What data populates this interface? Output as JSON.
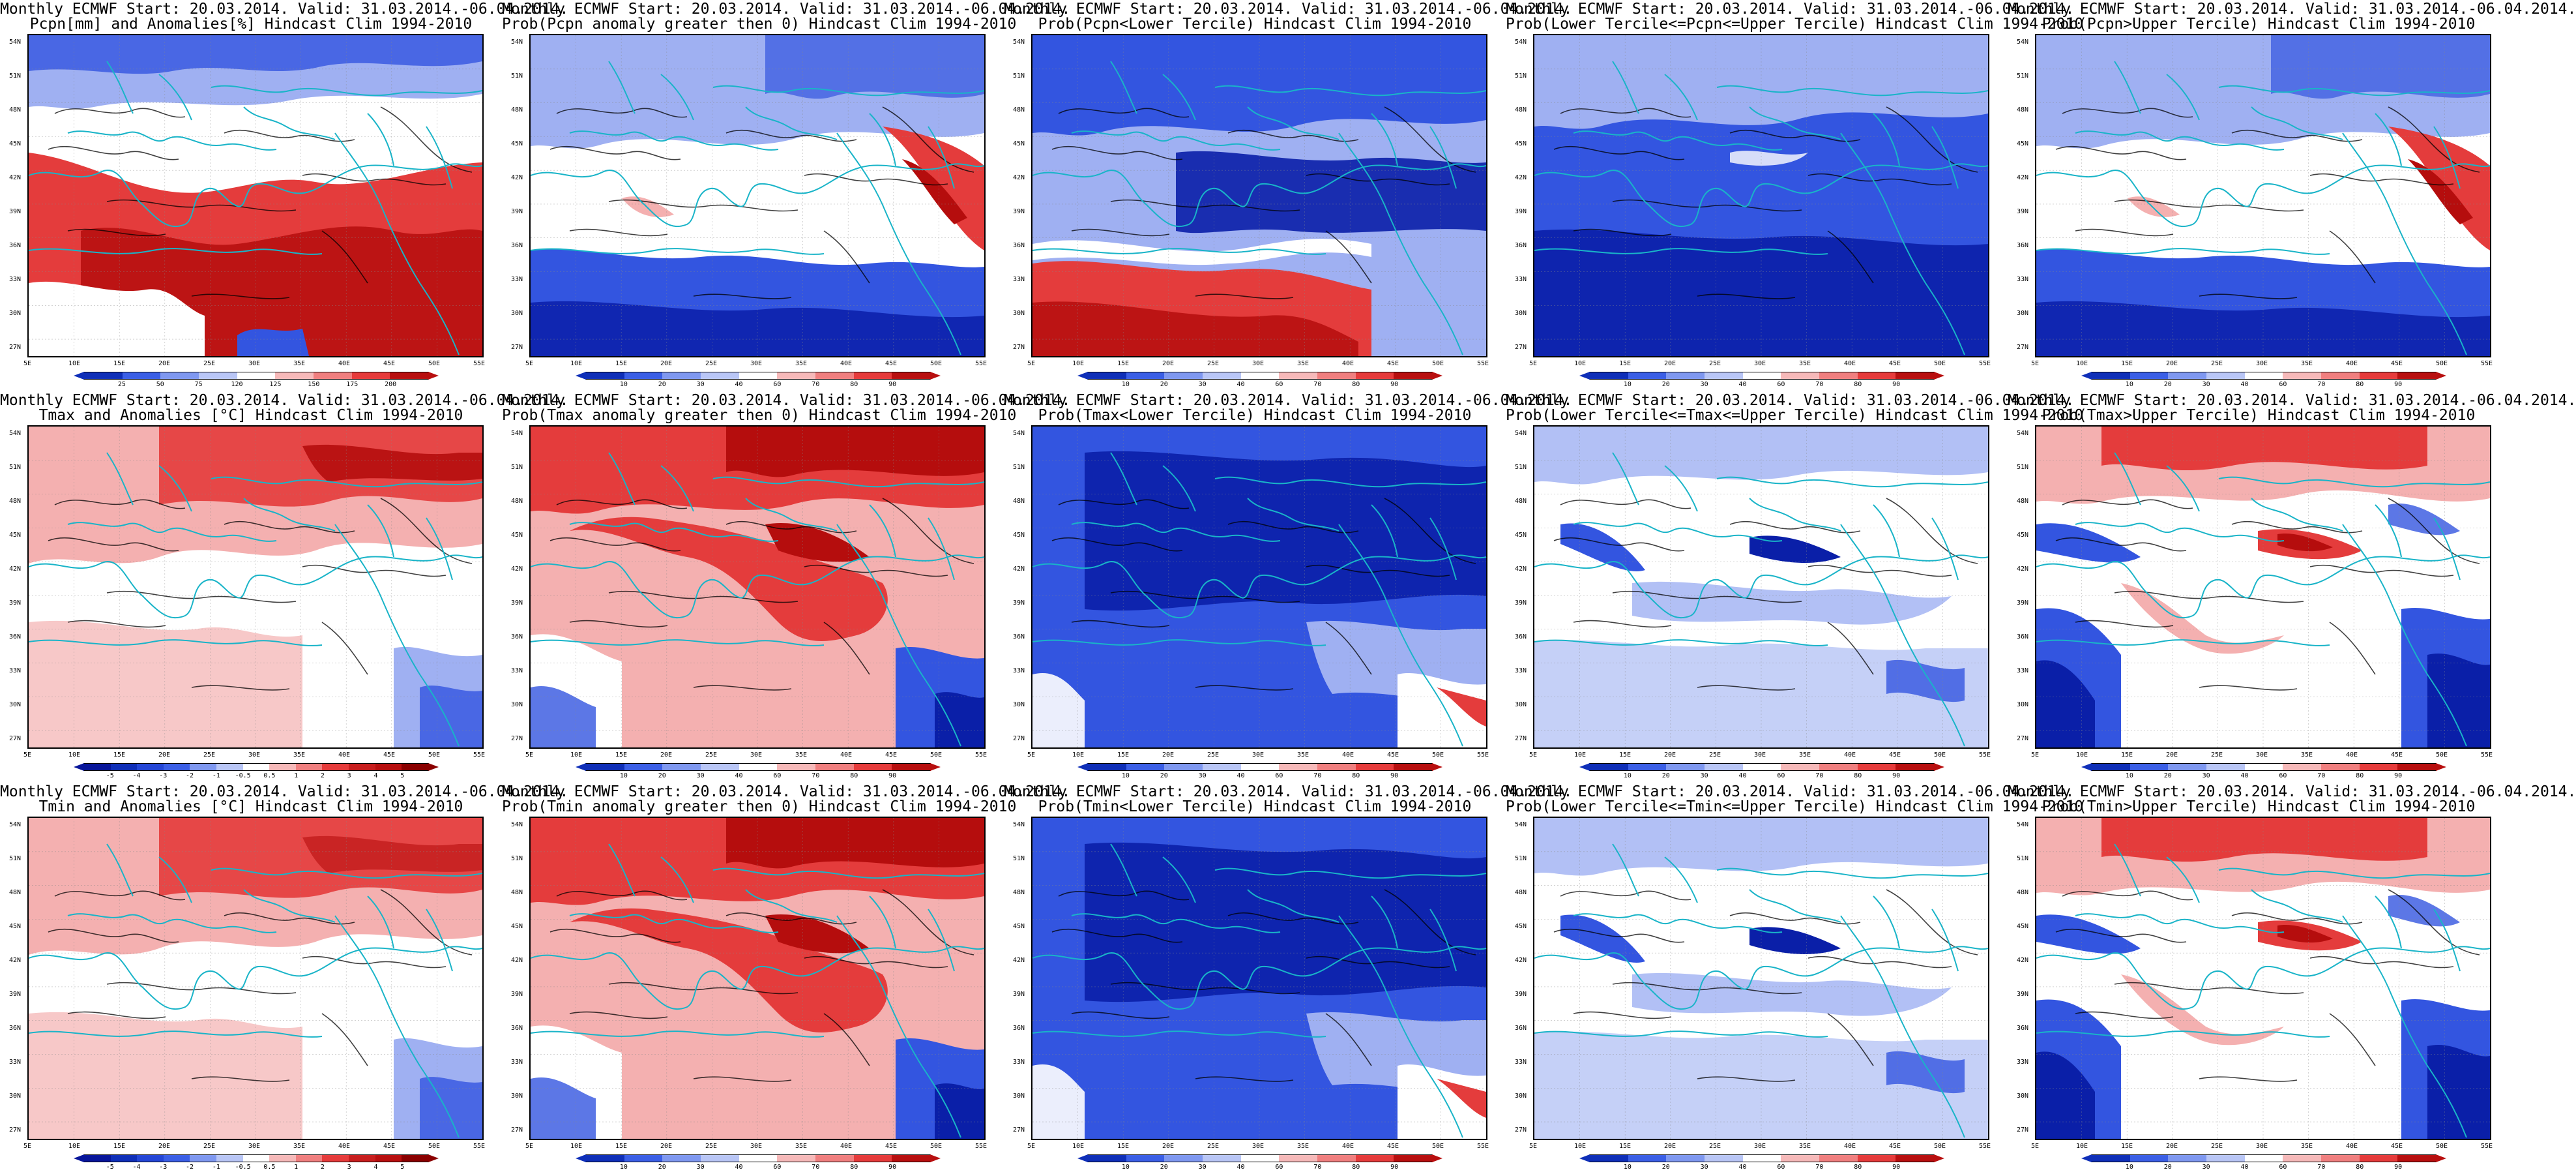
{
  "panels": [
    {
      "id": "pcpn-anom",
      "line1": "Monthly ECMWF Start: 20.03.2014. Valid: 31.03.2014.-06.04.2014.",
      "line2": "Pcpn[mm] and Anomalies[%] Hindcast Clim 1994-2010",
      "pattern": "pcpn-anom",
      "colorbar": "pct"
    },
    {
      "id": "pcpn-gt0",
      "line1": "Monthly ECMWF Start: 20.03.2014. Valid: 31.03.2014.-06.04.2014.",
      "line2": "Prob(Pcpn anomaly greater then 0) Hindcast Clim 1994-2010",
      "pattern": "pcpn-gt0",
      "colorbar": "prob"
    },
    {
      "id": "pcpn-lower",
      "line1": "Monthly ECMWF Start: 20.03.2014. Valid: 31.03.2014.-06.04.2014.",
      "line2": "Prob(Pcpn<Lower Tercile) Hindcast Clim 1994-2010",
      "pattern": "pcpn-lower",
      "colorbar": "prob"
    },
    {
      "id": "pcpn-middle",
      "line1": "Monthly ECMWF Start: 20.03.2014. Valid: 31.03.2014.-06.04.2014.",
      "line2": "Prob(Lower Tercile<=Pcpn<=Upper Tercile) Hindcast Clim 1994-2010",
      "pattern": "pcpn-middle",
      "colorbar": "prob"
    },
    {
      "id": "pcpn-upper",
      "line1": "Monthly ECMWF Start: 20.03.2014. Valid: 31.03.2014.-06.04.2014.",
      "line2": "Prob(Pcpn>Upper Tercile) Hindcast Clim 1994-2010",
      "pattern": "pcpn-upper",
      "colorbar": "prob"
    },
    {
      "id": "tmax-anom",
      "line1": "Monthly ECMWF Start: 20.03.2014. Valid: 31.03.2014.-06.04.2014.",
      "line2": "Tmax and Anomalies [°C] Hindcast Clim 1994-2010",
      "pattern": "tmax-anom",
      "colorbar": "temp"
    },
    {
      "id": "tmax-gt0",
      "line1": "Monthly ECMWF Start: 20.03.2014. Valid: 31.03.2014.-06.04.2014.",
      "line2": "Prob(Tmax anomaly greater then 0) Hindcast Clim 1994-2010",
      "pattern": "tmax-gt0",
      "colorbar": "prob"
    },
    {
      "id": "tmax-lower",
      "line1": "Monthly ECMWF Start: 20.03.2014. Valid: 31.03.2014.-06.04.2014.",
      "line2": "Prob(Tmax<Lower Tercile) Hindcast Clim 1994-2010",
      "pattern": "tmax-lower",
      "colorbar": "prob"
    },
    {
      "id": "tmax-middle",
      "line1": "Monthly ECMWF Start: 20.03.2014. Valid: 31.03.2014.-06.04.2014.",
      "line2": "Prob(Lower Tercile<=Tmax<=Upper Tercile) Hindcast Clim 1994-2010",
      "pattern": "tmax-middle",
      "colorbar": "prob"
    },
    {
      "id": "tmax-upper",
      "line1": "Monthly ECMWF Start: 20.03.2014. Valid: 31.03.2014.-06.04.2014.",
      "line2": "Prob(Tmax>Upper Tercile) Hindcast Clim 1994-2010",
      "pattern": "tmax-upper",
      "colorbar": "prob"
    },
    {
      "id": "tmin-anom",
      "line1": "Monthly ECMWF Start: 20.03.2014. Valid: 31.03.2014.-06.04.2014.",
      "line2": "Tmin and Anomalies [°C] Hindcast Clim 1994-2010",
      "pattern": "tmin-anom",
      "colorbar": "temp"
    },
    {
      "id": "tmin-gt0",
      "line1": "Monthly ECMWF Start: 20.03.2014. Valid: 31.03.2014.-06.04.2014.",
      "line2": "Prob(Tmin anomaly greater then 0) Hindcast Clim 1994-2010",
      "pattern": "tmin-gt0",
      "colorbar": "prob"
    },
    {
      "id": "tmin-lower",
      "line1": "Monthly ECMWF Start: 20.03.2014. Valid: 31.03.2014.-06.04.2014.",
      "line2": "Prob(Tmin<Lower Tercile) Hindcast Clim 1994-2010",
      "pattern": "tmin-lower",
      "colorbar": "prob"
    },
    {
      "id": "tmin-middle",
      "line1": "Monthly ECMWF Start: 20.03.2014. Valid: 31.03.2014.-06.04.2014.",
      "line2": "Prob(Lower Tercile<=Tmin<=Upper Tercile) Hindcast Clim 1994-2010",
      "pattern": "tmin-middle",
      "colorbar": "prob"
    },
    {
      "id": "tmin-upper",
      "line1": "Monthly ECMWF Start: 20.03.2014. Valid: 31.03.2014.-06.04.2014.",
      "line2": "Prob(Tmin>Upper Tercile) Hindcast Clim 1994-2010",
      "pattern": "tmin-upper",
      "colorbar": "prob"
    }
  ],
  "axes": {
    "lat_labels": [
      "54N",
      "51N",
      "48N",
      "45N",
      "42N",
      "39N",
      "36N",
      "33N",
      "30N",
      "27N"
    ],
    "lon_labels": [
      "5E",
      "10E",
      "15E",
      "20E",
      "25E",
      "30E",
      "35E",
      "40E",
      "45E",
      "50E",
      "55E"
    ]
  },
  "colorbars": {
    "pct": {
      "labels": [
        "25",
        "50",
        "75",
        "120",
        "125",
        "150",
        "175",
        "200"
      ],
      "colors": [
        "#0f2fb8",
        "#3b5fe6",
        "#7f98f0",
        "#b9c6f6",
        "#ffffff",
        "#f6b9b9",
        "#f07f7f",
        "#e63b3b",
        "#b80f0f"
      ]
    },
    "prob": {
      "labels": [
        "10",
        "20",
        "30",
        "40",
        "60",
        "70",
        "80",
        "90"
      ],
      "colors": [
        "#0f2fb8",
        "#3b5fe6",
        "#7f98f0",
        "#b9c6f6",
        "#ffffff",
        "#f6b9b9",
        "#f07f7f",
        "#e63b3b",
        "#b80f0f"
      ]
    },
    "temp": {
      "labels": [
        "-5",
        "-4",
        "-3",
        "-2",
        "-1",
        "-0.5",
        "0.5",
        "1",
        "2",
        "3",
        "4",
        "5"
      ],
      "colors": [
        "#08169a",
        "#0f2fb8",
        "#2446d6",
        "#3b5fe6",
        "#7f98f0",
        "#b9c6f6",
        "#ffffff",
        "#f6b9b9",
        "#f07f7f",
        "#e63b3b",
        "#c81e1e",
        "#b80f0f",
        "#8a0000"
      ]
    }
  },
  "palette": {
    "deep_blue": "#0a1fa8",
    "blue": "#3355e0",
    "light_blue": "#9fb0f2",
    "white": "#ffffff",
    "light_red": "#f4b0b0",
    "red": "#e43c3c",
    "deep_red": "#b50d0d",
    "coast": "#19b4c8",
    "contour": "#000000"
  }
}
